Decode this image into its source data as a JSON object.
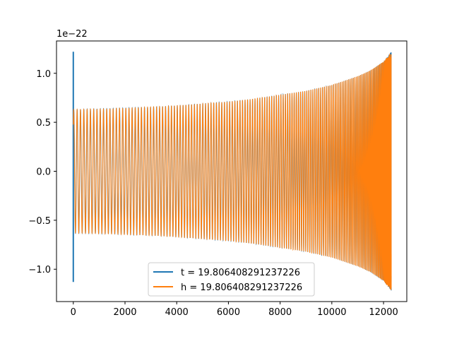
{
  "chart_data": {
    "type": "line",
    "title": "",
    "xlabel": "",
    "ylabel": "",
    "offset_text": "1e−22",
    "xlim": [
      -650,
      12900
    ],
    "ylim": [
      -1.33,
      1.33
    ],
    "y_scale_exponent": -22,
    "grid": false,
    "legend_position": "lower-center",
    "x_ticks": [
      0,
      2000,
      4000,
      6000,
      8000,
      10000,
      12000
    ],
    "x_tick_labels": [
      "0",
      "2000",
      "4000",
      "6000",
      "8000",
      "10000",
      "12000"
    ],
    "y_ticks": [
      -1.0,
      -0.5,
      0.0,
      0.5,
      1.0
    ],
    "y_tick_labels": [
      "−1.0",
      "−0.5",
      "0.0",
      "0.5",
      "1.0"
    ],
    "series": [
      {
        "name": "t = 19.806408291237226",
        "color": "#1f77b4",
        "description": "inspiral chirp waveform; initial spike at x=0 reaching +1.22 and -1.13",
        "x_end": 12300,
        "envelope_x": [
          0,
          1000,
          2000,
          3000,
          4000,
          5000,
          6000,
          7000,
          8000,
          9000,
          10000,
          11000,
          11500,
          12000,
          12300
        ],
        "envelope_y": [
          0.63,
          0.635,
          0.645,
          0.655,
          0.67,
          0.69,
          0.71,
          0.74,
          0.78,
          0.82,
          0.88,
          0.97,
          1.03,
          1.12,
          1.22
        ],
        "spike_max": 1.22,
        "spike_min": -1.13
      },
      {
        "name": "h = 19.806408291237226",
        "color": "#ff7f0e",
        "description": "inspiral chirp waveform overlaying the first series",
        "x_end": 12300,
        "envelope_x": [
          0,
          1000,
          2000,
          3000,
          4000,
          5000,
          6000,
          7000,
          8000,
          9000,
          10000,
          11000,
          11500,
          12000,
          12300
        ],
        "envelope_y": [
          0.63,
          0.635,
          0.645,
          0.655,
          0.67,
          0.69,
          0.71,
          0.74,
          0.78,
          0.82,
          0.88,
          0.97,
          1.03,
          1.12,
          1.22
        ]
      }
    ]
  }
}
